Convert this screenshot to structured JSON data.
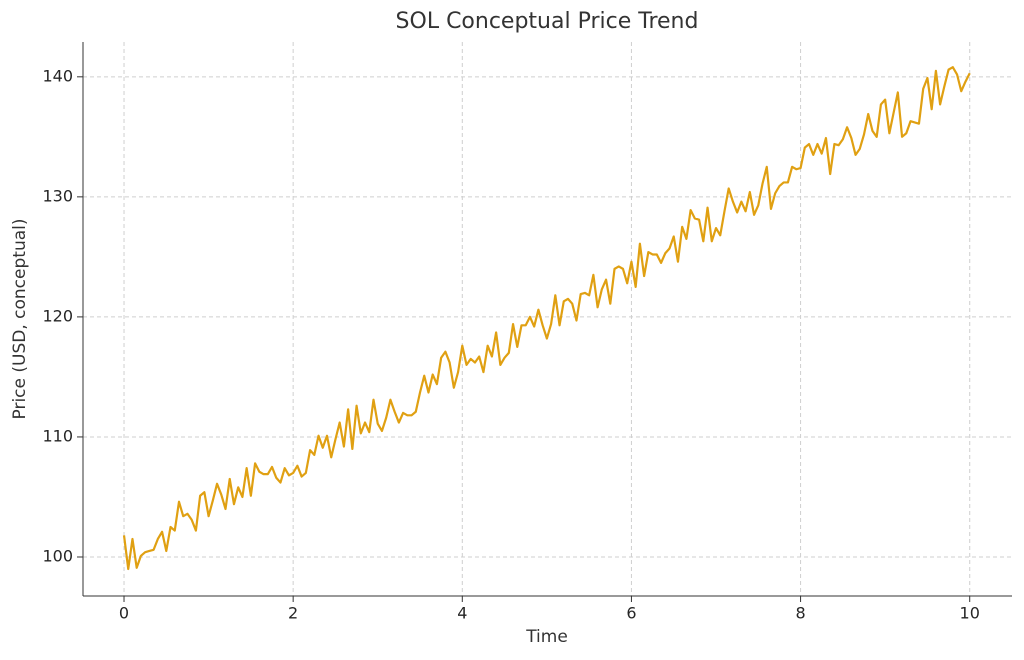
{
  "chart_data": {
    "type": "line",
    "title": "SOL Conceptual Price Trend",
    "x_label": "Time",
    "y_label": "Price (USD, conceptual)",
    "x": [
      0,
      0.05,
      0.1,
      0.15,
      0.2,
      0.25,
      0.3,
      0.35,
      0.4,
      0.45,
      0.5,
      0.55,
      0.6,
      0.65,
      0.7,
      0.75,
      0.8,
      0.85,
      0.9,
      0.95,
      1,
      1.05,
      1.1,
      1.15,
      1.2,
      1.25,
      1.3,
      1.35,
      1.4,
      1.45,
      1.5,
      1.55,
      1.6,
      1.65,
      1.7,
      1.75,
      1.8,
      1.85,
      1.9,
      1.95,
      2,
      2.05,
      2.1,
      2.15,
      2.2,
      2.25,
      2.3,
      2.35,
      2.4,
      2.45,
      2.5,
      2.55,
      2.6,
      2.65,
      2.7,
      2.75,
      2.8,
      2.85,
      2.9,
      2.95,
      3,
      3.05,
      3.1,
      3.15,
      3.2,
      3.25,
      3.3,
      3.35,
      3.4,
      3.45,
      3.5,
      3.55,
      3.6,
      3.65,
      3.7,
      3.75,
      3.8,
      3.85,
      3.9,
      3.95,
      4,
      4.05,
      4.1,
      4.15,
      4.2,
      4.25,
      4.3,
      4.35,
      4.4,
      4.45,
      4.5,
      4.55,
      4.6,
      4.65,
      4.7,
      4.75,
      4.8,
      4.85,
      4.9,
      4.95,
      5,
      5.05,
      5.1,
      5.15,
      5.2,
      5.25,
      5.3,
      5.35,
      5.4,
      5.45,
      5.5,
      5.55,
      5.6,
      5.65,
      5.7,
      5.75,
      5.8,
      5.85,
      5.9,
      5.95,
      6,
      6.05,
      6.1,
      6.15,
      6.2,
      6.25,
      6.3,
      6.35,
      6.4,
      6.45,
      6.5,
      6.55,
      6.6,
      6.65,
      6.7,
      6.75,
      6.8,
      6.85,
      6.9,
      6.95,
      7,
      7.05,
      7.1,
      7.15,
      7.2,
      7.25,
      7.3,
      7.35,
      7.4,
      7.45,
      7.5,
      7.55,
      7.6,
      7.65,
      7.7,
      7.75,
      7.8,
      7.85,
      7.9,
      7.95,
      8,
      8.05,
      8.1,
      8.15,
      8.2,
      8.25,
      8.3,
      8.35,
      8.4,
      8.45,
      8.5,
      8.55,
      8.6,
      8.65,
      8.7,
      8.75,
      8.8,
      8.85,
      8.9,
      8.95,
      9,
      9.05,
      9.1,
      9.15,
      9.2,
      9.25,
      9.3,
      9.35,
      9.4,
      9.45,
      9.5,
      9.55,
      9.6,
      9.65,
      9.7,
      9.75,
      9.8,
      9.85,
      9.9,
      9.95,
      10
    ],
    "series": [
      {
        "name": "SOL",
        "color": "#e0a012",
        "values": [
          101.8,
          99,
          101.5,
          99.1,
          100.1,
          100.4,
          100.5,
          100.6,
          101.5,
          102.1,
          100.5,
          102.5,
          102.2,
          104.6,
          103.4,
          103.6,
          103.1,
          102.2,
          105.1,
          105.4,
          103.4,
          104.7,
          106.1,
          105.2,
          104,
          106.5,
          104.4,
          105.8,
          105,
          107.4,
          105.1,
          107.8,
          107.1,
          106.9,
          106.9,
          107.5,
          106.6,
          106.2,
          107.4,
          106.8,
          107,
          107.6,
          106.7,
          107,
          108.9,
          108.5,
          110.1,
          109.1,
          110.1,
          108.3,
          109.8,
          111.2,
          109.2,
          112.3,
          109,
          112.6,
          110.3,
          111.2,
          110.4,
          113.1,
          111.1,
          110.5,
          111.6,
          113.1,
          112.1,
          111.2,
          112,
          111.8,
          111.8,
          112.1,
          113.7,
          115.1,
          113.7,
          115.2,
          114.4,
          116.6,
          117.1,
          116.2,
          114.1,
          115.4,
          117.6,
          116,
          116.5,
          116.2,
          116.7,
          115.4,
          117.6,
          116.7,
          118.7,
          116,
          116.6,
          117,
          119.4,
          117.5,
          119.3,
          119.3,
          120,
          119.2,
          120.6,
          119.3,
          118.2,
          119.4,
          121.8,
          119.3,
          121.3,
          121.5,
          121.1,
          119.7,
          121.9,
          122,
          121.8,
          123.5,
          120.8,
          122.3,
          123.1,
          121.1,
          124,
          124.2,
          124,
          122.8,
          124.6,
          122.5,
          126.1,
          123.4,
          125.4,
          125.2,
          125.2,
          124.5,
          125.3,
          125.7,
          126.7,
          124.6,
          127.5,
          126.5,
          128.9,
          128.2,
          128.1,
          126.3,
          129.1,
          126.3,
          127.4,
          126.8,
          128.8,
          130.7,
          129.6,
          128.7,
          129.6,
          128.8,
          130.4,
          128.5,
          129.3,
          131.1,
          132.5,
          129,
          130.3,
          130.9,
          131.2,
          131.2,
          132.5,
          132.3,
          132.4,
          134.1,
          134.4,
          133.5,
          134.4,
          133.6,
          134.9,
          131.9,
          134.4,
          134.3,
          134.8,
          135.8,
          134.9,
          133.5,
          134,
          135.2,
          136.9,
          135.5,
          135,
          137.7,
          138.1,
          135.3,
          137,
          138.7,
          135,
          135.3,
          136.3,
          136.2,
          136.1,
          139,
          139.9,
          137.3,
          140.5,
          137.7,
          139.2,
          140.6,
          140.8,
          140.2,
          138.8,
          139.6,
          140.3
        ]
      }
    ],
    "xlim": [
      -0.485,
      10.5
    ],
    "ylim": [
      96.75,
      142.9
    ],
    "xticks": [
      0,
      2,
      4,
      6,
      8,
      10
    ],
    "yticks": [
      100,
      110,
      120,
      130,
      140
    ],
    "grid": true
  }
}
